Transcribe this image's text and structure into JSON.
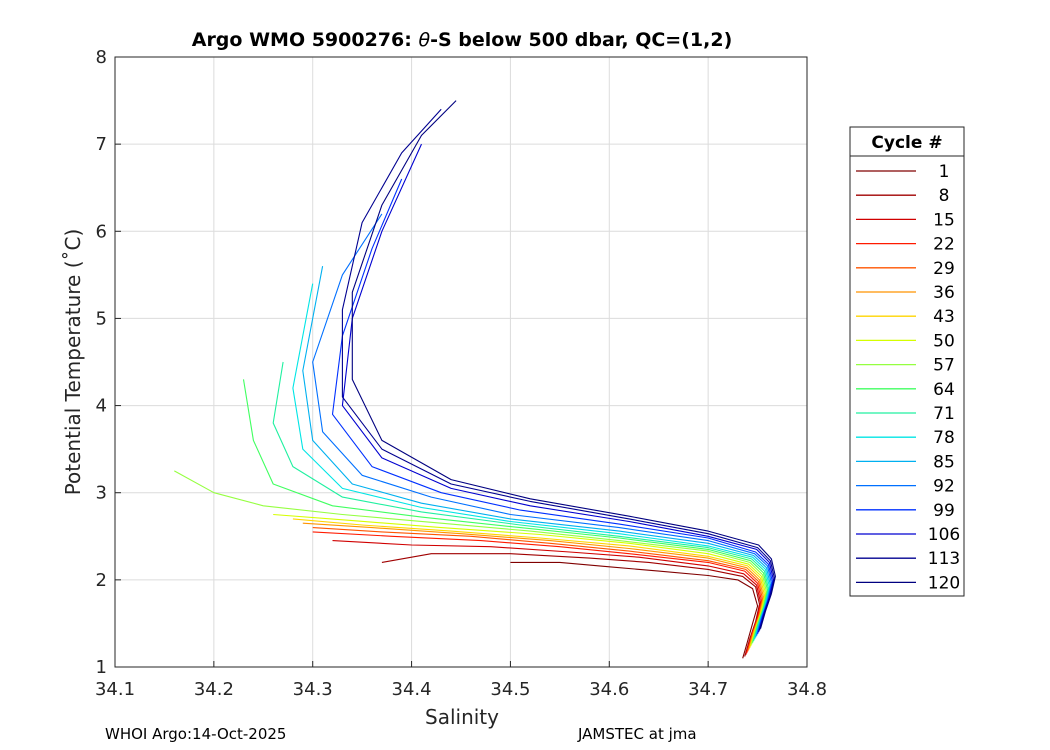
{
  "chart_data": {
    "type": "line",
    "title_prefix": "Argo WMO 5900276: ",
    "title_theta": "θ",
    "title_suffix": "-S below 500 dbar,  QC=(1,2)",
    "xlabel": "Salinity",
    "ylabel": "Potential Temperature (˚C)",
    "xlim": [
      34.1,
      34.8
    ],
    "ylim": [
      1,
      8
    ],
    "xticks": [
      34.1,
      34.2,
      34.3,
      34.4,
      34.5,
      34.6,
      34.7,
      34.8
    ],
    "xtick_labels": [
      "34.1",
      "34.2",
      "34.3",
      "34.4",
      "34.5",
      "34.6",
      "34.7",
      "34.8"
    ],
    "yticks": [
      1,
      2,
      3,
      4,
      5,
      6,
      7,
      8
    ],
    "ytick_labels": [
      "1",
      "2",
      "3",
      "4",
      "5",
      "6",
      "7",
      "8"
    ],
    "grid": true,
    "legend_title": "Cycle #",
    "legend_position": "right-outside",
    "legend": [
      {
        "label": "1",
        "color": "#800000"
      },
      {
        "label": "8",
        "color": "#a00000"
      },
      {
        "label": "15",
        "color": "#d00000"
      },
      {
        "label": "22",
        "color": "#ff1a00"
      },
      {
        "label": "29",
        "color": "#ff5500"
      },
      {
        "label": "36",
        "color": "#ff9500"
      },
      {
        "label": "43",
        "color": "#ffd500"
      },
      {
        "label": "50",
        "color": "#d5ff00"
      },
      {
        "label": "57",
        "color": "#95ff40"
      },
      {
        "label": "64",
        "color": "#40ff60"
      },
      {
        "label": "71",
        "color": "#20f0a0"
      },
      {
        "label": "78",
        "color": "#00e5e5"
      },
      {
        "label": "85",
        "color": "#00b0f0"
      },
      {
        "label": "92",
        "color": "#0070ff"
      },
      {
        "label": "99",
        "color": "#0030ff"
      },
      {
        "label": "106",
        "color": "#0000d0"
      },
      {
        "label": "113",
        "color": "#000090"
      },
      {
        "label": "120",
        "color": "#000080"
      }
    ],
    "series": [
      {
        "name": "1",
        "color": "#800000",
        "x": [
          34.735,
          34.74,
          34.745,
          34.75,
          34.745,
          34.73,
          34.7,
          34.65,
          34.6,
          34.55,
          34.5
        ],
        "y": [
          1.1,
          1.3,
          1.5,
          1.7,
          1.9,
          2.0,
          2.05,
          2.1,
          2.15,
          2.2,
          2.2
        ]
      },
      {
        "name": "8",
        "color": "#a00000",
        "x": [
          34.737,
          34.742,
          34.748,
          34.752,
          34.748,
          34.735,
          34.7,
          34.64,
          34.58,
          34.5,
          34.42,
          34.37
        ],
        "y": [
          1.12,
          1.32,
          1.52,
          1.72,
          1.92,
          2.04,
          2.12,
          2.2,
          2.25,
          2.3,
          2.3,
          2.2
        ]
      },
      {
        "name": "15",
        "color": "#d00000",
        "x": [
          34.738,
          34.743,
          34.749,
          34.753,
          34.749,
          34.736,
          34.7,
          34.63,
          34.56,
          34.48,
          34.4,
          34.32
        ],
        "y": [
          1.14,
          1.34,
          1.54,
          1.74,
          1.94,
          2.07,
          2.16,
          2.26,
          2.32,
          2.38,
          2.4,
          2.45
        ]
      },
      {
        "name": "22",
        "color": "#ff1a00",
        "x": [
          34.739,
          34.744,
          34.75,
          34.754,
          34.75,
          34.737,
          34.7,
          34.62,
          34.55,
          34.47,
          34.38,
          34.3
        ],
        "y": [
          1.16,
          1.36,
          1.56,
          1.76,
          1.96,
          2.1,
          2.2,
          2.3,
          2.38,
          2.45,
          2.5,
          2.55
        ]
      },
      {
        "name": "29",
        "color": "#ff5500",
        "x": [
          34.74,
          34.745,
          34.751,
          34.755,
          34.751,
          34.738,
          34.7,
          34.62,
          34.54,
          34.46,
          34.37,
          34.3
        ],
        "y": [
          1.18,
          1.38,
          1.58,
          1.78,
          1.98,
          2.12,
          2.22,
          2.33,
          2.42,
          2.5,
          2.55,
          2.6
        ]
      },
      {
        "name": "36",
        "color": "#ff9500",
        "x": [
          34.741,
          34.746,
          34.752,
          34.756,
          34.752,
          34.739,
          34.7,
          34.62,
          34.54,
          34.45,
          34.36,
          34.29
        ],
        "y": [
          1.2,
          1.4,
          1.6,
          1.8,
          2.0,
          2.14,
          2.25,
          2.36,
          2.45,
          2.53,
          2.6,
          2.65
        ]
      },
      {
        "name": "43",
        "color": "#ffd500",
        "x": [
          34.742,
          34.747,
          34.753,
          34.757,
          34.753,
          34.74,
          34.7,
          34.62,
          34.53,
          34.44,
          34.35,
          34.28
        ],
        "y": [
          1.22,
          1.42,
          1.62,
          1.82,
          2.02,
          2.16,
          2.27,
          2.39,
          2.48,
          2.56,
          2.63,
          2.7
        ]
      },
      {
        "name": "50",
        "color": "#d5ff00",
        "x": [
          34.743,
          34.748,
          34.754,
          34.758,
          34.754,
          34.741,
          34.7,
          34.62,
          34.53,
          34.43,
          34.34,
          34.26
        ],
        "y": [
          1.24,
          1.44,
          1.64,
          1.84,
          2.04,
          2.18,
          2.3,
          2.42,
          2.52,
          2.6,
          2.68,
          2.75
        ]
      },
      {
        "name": "57",
        "color": "#95ff40",
        "x": [
          34.744,
          34.749,
          34.755,
          34.759,
          34.755,
          34.742,
          34.7,
          34.61,
          34.52,
          34.42,
          34.33,
          34.25,
          34.2,
          34.16
        ],
        "y": [
          1.26,
          1.46,
          1.66,
          1.86,
          2.06,
          2.2,
          2.33,
          2.45,
          2.56,
          2.66,
          2.75,
          2.85,
          3.0,
          3.25
        ]
      },
      {
        "name": "64",
        "color": "#40ff60",
        "x": [
          34.745,
          34.75,
          34.756,
          34.76,
          34.756,
          34.743,
          34.7,
          34.61,
          34.51,
          34.41,
          34.32,
          34.26,
          34.24,
          34.23
        ],
        "y": [
          1.28,
          1.48,
          1.68,
          1.88,
          2.08,
          2.22,
          2.35,
          2.48,
          2.6,
          2.72,
          2.85,
          3.1,
          3.6,
          4.3
        ]
      },
      {
        "name": "71",
        "color": "#20f0a0",
        "x": [
          34.746,
          34.751,
          34.757,
          34.761,
          34.757,
          34.744,
          34.7,
          34.61,
          34.51,
          34.41,
          34.33,
          34.28,
          34.26,
          34.27
        ],
        "y": [
          1.3,
          1.5,
          1.7,
          1.9,
          2.1,
          2.24,
          2.37,
          2.5,
          2.63,
          2.78,
          2.95,
          3.3,
          3.8,
          4.5
        ]
      },
      {
        "name": "78",
        "color": "#00e5e5",
        "x": [
          34.747,
          34.752,
          34.758,
          34.762,
          34.758,
          34.745,
          34.7,
          34.61,
          34.5,
          34.41,
          34.33,
          34.29,
          34.28,
          34.3
        ],
        "y": [
          1.32,
          1.52,
          1.72,
          1.92,
          2.12,
          2.26,
          2.39,
          2.53,
          2.67,
          2.83,
          3.05,
          3.5,
          4.2,
          5.4
        ]
      },
      {
        "name": "85",
        "color": "#00b0f0",
        "x": [
          34.748,
          34.753,
          34.759,
          34.763,
          34.759,
          34.746,
          34.7,
          34.61,
          34.5,
          34.41,
          34.34,
          34.3,
          34.29,
          34.31
        ],
        "y": [
          1.34,
          1.54,
          1.74,
          1.94,
          2.14,
          2.28,
          2.42,
          2.56,
          2.7,
          2.88,
          3.1,
          3.6,
          4.4,
          5.6
        ]
      },
      {
        "name": "92",
        "color": "#0070ff",
        "x": [
          34.749,
          34.754,
          34.76,
          34.764,
          34.76,
          34.747,
          34.7,
          34.61,
          34.5,
          34.42,
          34.35,
          34.31,
          34.3,
          34.33,
          34.37
        ],
        "y": [
          1.36,
          1.56,
          1.76,
          1.96,
          2.16,
          2.3,
          2.45,
          2.6,
          2.75,
          2.95,
          3.2,
          3.7,
          4.5,
          5.5,
          6.2
        ]
      },
      {
        "name": "99",
        "color": "#0030ff",
        "x": [
          34.75,
          34.755,
          34.761,
          34.765,
          34.761,
          34.748,
          34.7,
          34.61,
          34.51,
          34.43,
          34.36,
          34.32,
          34.33,
          34.36,
          34.39
        ],
        "y": [
          1.38,
          1.58,
          1.78,
          1.98,
          2.18,
          2.32,
          2.48,
          2.64,
          2.8,
          3.0,
          3.3,
          3.9,
          4.8,
          5.8,
          6.6
        ]
      },
      {
        "name": "106",
        "color": "#0000d0",
        "x": [
          34.751,
          34.756,
          34.762,
          34.766,
          34.762,
          34.749,
          34.7,
          34.62,
          34.52,
          34.44,
          34.37,
          34.33,
          34.34,
          34.37,
          34.41
        ],
        "y": [
          1.4,
          1.6,
          1.8,
          2.0,
          2.2,
          2.35,
          2.5,
          2.67,
          2.85,
          3.05,
          3.4,
          4.0,
          5.0,
          6.0,
          7.0
        ]
      },
      {
        "name": "113",
        "color": "#000090",
        "x": [
          34.752,
          34.757,
          34.763,
          34.767,
          34.763,
          34.75,
          34.7,
          34.62,
          34.52,
          34.44,
          34.37,
          34.33,
          34.33,
          34.35,
          34.39,
          34.43
        ],
        "y": [
          1.42,
          1.62,
          1.82,
          2.02,
          2.22,
          2.37,
          2.53,
          2.7,
          2.9,
          3.1,
          3.5,
          4.1,
          5.1,
          6.1,
          6.9,
          7.4
        ]
      },
      {
        "name": "120",
        "color": "#000080",
        "x": [
          34.753,
          34.758,
          34.764,
          34.768,
          34.764,
          34.751,
          34.7,
          34.62,
          34.52,
          34.44,
          34.37,
          34.34,
          34.34,
          34.37,
          34.41,
          34.445
        ],
        "y": [
          1.44,
          1.64,
          1.84,
          2.04,
          2.24,
          2.4,
          2.56,
          2.73,
          2.93,
          3.15,
          3.6,
          4.3,
          5.3,
          6.3,
          7.1,
          7.5
        ]
      }
    ]
  },
  "footer": {
    "left": "WHOI Argo:14-Oct-2025",
    "right": "JAMSTEC at jma"
  }
}
